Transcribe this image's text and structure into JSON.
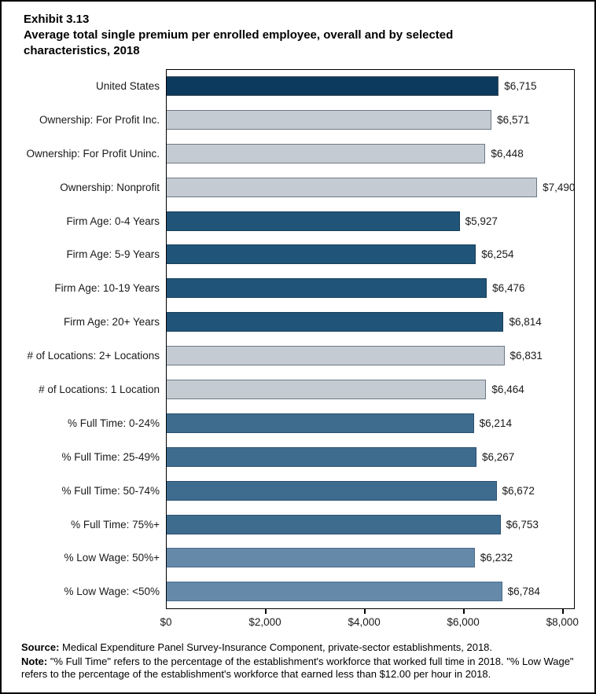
{
  "page": {
    "exhibit_label": "Exhibit 3.13",
    "title": "Average total single premium per enrolled employee, overall and by selected characteristics, 2018"
  },
  "chart_data": {
    "type": "bar",
    "orientation": "horizontal",
    "title": "Average total single premium per enrolled employee, overall and by selected characteristics, 2018",
    "categories": [
      "United States",
      "Ownership: For Profit Inc.",
      "Ownership: For Profit Uninc.",
      "Ownership: Nonprofit",
      "Firm Age: 0-4 Years",
      "Firm Age: 5-9 Years",
      "Firm Age: 10-19 Years",
      "Firm Age: 20+ Years",
      "# of Locations: 2+ Locations",
      "# of Locations: 1 Location",
      "% Full Time: 0-24%",
      "% Full Time: 25-49%",
      "% Full Time: 50-74%",
      "% Full Time: 75%+",
      "% Low Wage: 50%+",
      "% Low Wage: <50%"
    ],
    "values": [
      6715,
      6571,
      6448,
      7490,
      5927,
      6254,
      6476,
      6814,
      6831,
      6464,
      6214,
      6267,
      6672,
      6753,
      6232,
      6784
    ],
    "value_labels": [
      "$6,715",
      "$6,571",
      "$6,448",
      "$7,490",
      "$5,927",
      "$6,254",
      "$6,476",
      "$6,814",
      "$6,831",
      "$6,464",
      "$6,214",
      "$6,267",
      "$6,672",
      "$6,753",
      "$6,232",
      "$6,784"
    ],
    "bar_groups": [
      "united_states",
      "ownership",
      "ownership",
      "ownership",
      "firm_age",
      "firm_age",
      "firm_age",
      "firm_age",
      "locations",
      "locations",
      "full_time",
      "full_time",
      "full_time",
      "full_time",
      "low_wage",
      "low_wage"
    ],
    "group_colors": {
      "united_states": {
        "fill": "#0c3a5e",
        "border": "#3e4d59"
      },
      "ownership": {
        "fill": "#c4cbd2",
        "border": "#6f7a85"
      },
      "firm_age": {
        "fill": "#205478",
        "border": "#17405c"
      },
      "locations": {
        "fill": "#c4cbd2",
        "border": "#6f7a85"
      },
      "full_time": {
        "fill": "#3e6c8f",
        "border": "#2b5170"
      },
      "low_wage": {
        "fill": "#6589a9",
        "border": "#4a6c8c"
      }
    },
    "xlabel": "",
    "ylabel": "",
    "xlim": [
      0,
      8250
    ],
    "x_ticks": [
      {
        "value": 0,
        "label": "$0"
      },
      {
        "value": 2000,
        "label": "$2,000"
      },
      {
        "value": 4000,
        "label": "$4,000"
      },
      {
        "value": 6000,
        "label": "$6,000"
      },
      {
        "value": 8000,
        "label": "$8,000"
      }
    ],
    "grid": false,
    "legend": false,
    "data_labels": true
  },
  "notes": {
    "source_label": "Source:",
    "source_text": " Medical Expenditure Panel Survey-Insurance Component, private-sector establishments, 2018.",
    "note_label": "Note:",
    "note_text": " \"% Full Time\" refers to the percentage of the establishment's workforce that worked full time in 2018. \"% Low Wage\" refers to the percentage of the establishment's workforce that earned less than $12.00 per hour in 2018."
  }
}
